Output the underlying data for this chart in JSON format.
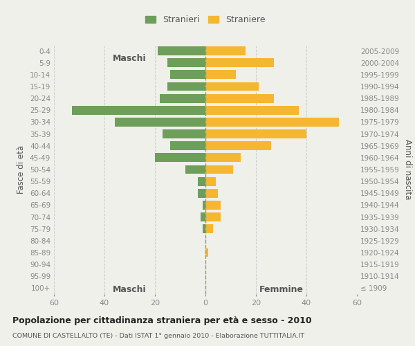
{
  "age_groups": [
    "0-4",
    "5-9",
    "10-14",
    "15-19",
    "20-24",
    "25-29",
    "30-34",
    "35-39",
    "40-44",
    "45-49",
    "50-54",
    "55-59",
    "60-64",
    "65-69",
    "70-74",
    "75-79",
    "80-84",
    "85-89",
    "90-94",
    "95-99",
    "100+"
  ],
  "birth_years": [
    "2005-2009",
    "2000-2004",
    "1995-1999",
    "1990-1994",
    "1985-1989",
    "1980-1984",
    "1975-1979",
    "1970-1974",
    "1965-1969",
    "1960-1964",
    "1955-1959",
    "1950-1954",
    "1945-1949",
    "1940-1944",
    "1935-1939",
    "1930-1934",
    "1925-1929",
    "1920-1924",
    "1915-1919",
    "1910-1914",
    "≤ 1909"
  ],
  "maschi": [
    19,
    15,
    14,
    15,
    18,
    53,
    36,
    17,
    14,
    20,
    8,
    3,
    3,
    1,
    2,
    1,
    0,
    0,
    0,
    0,
    0
  ],
  "femmine": [
    16,
    27,
    12,
    21,
    27,
    37,
    53,
    40,
    26,
    14,
    11,
    4,
    5,
    6,
    6,
    3,
    0,
    1,
    0,
    0,
    0
  ],
  "maschi_color": "#6d9e5a",
  "femmine_color": "#f5b731",
  "background_color": "#f0f0eb",
  "title": "Popolazione per cittadinanza straniera per età e sesso - 2010",
  "subtitle": "COMUNE DI CASTELLALTO (TE) - Dati ISTAT 1° gennaio 2010 - Elaborazione TUTTITALIA.IT",
  "header_left": "Maschi",
  "header_right": "Femmine",
  "ylabel_left": "Fasce di età",
  "ylabel_right": "Anni di nascita",
  "legend_maschi": "Stranieri",
  "legend_femmine": "Straniere",
  "xlim": 60,
  "bar_height": 0.75,
  "grid_color": "#cccccc",
  "vline_color": "#999966",
  "tick_color": "#888888",
  "label_color": "#555555",
  "title_color": "#222222",
  "subtitle_color": "#555555"
}
